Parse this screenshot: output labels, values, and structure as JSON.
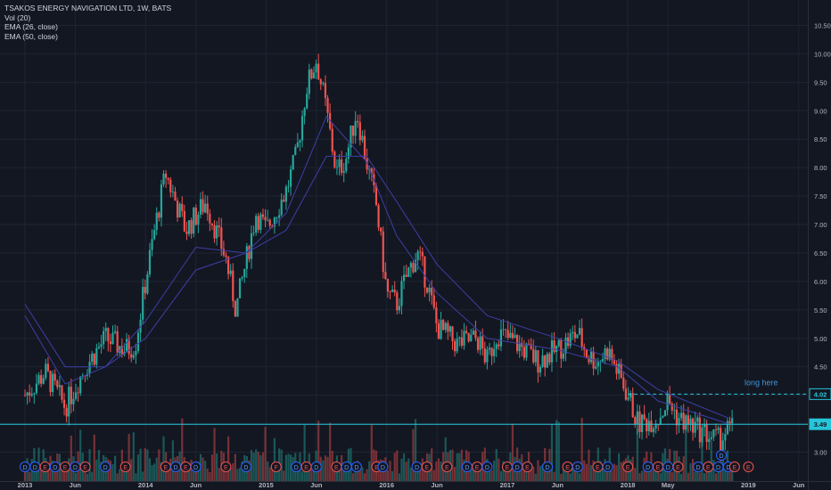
{
  "legend": {
    "title": "TSAKOS ENERGY NAVIGATION LTD, 1W, BATS",
    "vol": "Vol (20)",
    "ema26": "EMA (26, close)",
    "ema50": "EMA (50, close)"
  },
  "annotation": "long here",
  "colors": {
    "background": "#131722",
    "grid": "#1e2433",
    "up": "#26a69a",
    "down": "#ef5350",
    "ema": "#3e3fa5",
    "level": "#26c6da"
  },
  "chart_data": {
    "type": "candlestick",
    "x_ticks": [
      "2013",
      "Jun",
      "2014",
      "Jun",
      "2015",
      "Jun",
      "2016",
      "Jun",
      "2017",
      "Jun",
      "2018",
      "May",
      "2019",
      "Jun"
    ],
    "y_ticks": [
      "10.50",
      "10.00",
      "9.50",
      "9.00",
      "8.50",
      "8.00",
      "7.50",
      "7.00",
      "6.50",
      "6.00",
      "5.50",
      "5.00",
      "4.50",
      "4.00",
      "3.50",
      "3.00"
    ],
    "ylim": [
      2.7,
      10.7
    ],
    "price_labels": [
      "4.02",
      "3.49"
    ],
    "price_levels": [
      4.02,
      3.49
    ],
    "close_path": [
      [
        "2013-01",
        4.0
      ],
      [
        "2013-03",
        4.4
      ],
      [
        "2013-05",
        3.8
      ],
      [
        "2013-07",
        4.5
      ],
      [
        "2013-09",
        5.0
      ],
      [
        "2013-11",
        4.8
      ],
      [
        "2013-12",
        4.9
      ],
      [
        "2014-01",
        6.0
      ],
      [
        "2014-02",
        7.0
      ],
      [
        "2014-03",
        7.9
      ],
      [
        "2014-05",
        6.9
      ],
      [
        "2014-07",
        7.4
      ],
      [
        "2014-09",
        6.4
      ],
      [
        "2014-10",
        5.5
      ],
      [
        "2014-12",
        7.2
      ],
      [
        "2015-01",
        6.9
      ],
      [
        "2015-03",
        7.6
      ],
      [
        "2015-04",
        8.2
      ],
      [
        "2015-05",
        9.4
      ],
      [
        "2015-06",
        9.9
      ],
      [
        "2015-07",
        9.0
      ],
      [
        "2015-08",
        7.9
      ],
      [
        "2015-09",
        8.2
      ],
      [
        "2015-10",
        9.0
      ],
      [
        "2015-11",
        8.1
      ],
      [
        "2015-12",
        7.3
      ],
      [
        "2016-01",
        5.8
      ],
      [
        "2016-02",
        5.6
      ],
      [
        "2016-03",
        6.1
      ],
      [
        "2016-04",
        6.5
      ],
      [
        "2016-05",
        6.0
      ],
      [
        "2016-06",
        5.2
      ],
      [
        "2016-08",
        4.9
      ],
      [
        "2016-10",
        5.0
      ],
      [
        "2016-11",
        4.6
      ],
      [
        "2016-12",
        5.1
      ],
      [
        "2017-02",
        4.9
      ],
      [
        "2017-04",
        4.6
      ],
      [
        "2017-06",
        4.8
      ],
      [
        "2017-08",
        5.1
      ],
      [
        "2017-09",
        4.7
      ],
      [
        "2017-10",
        4.6
      ],
      [
        "2017-11",
        4.8
      ],
      [
        "2017-12",
        4.4
      ],
      [
        "2018-01",
        4.0
      ],
      [
        "2018-02",
        3.5
      ],
      [
        "2018-04",
        3.6
      ],
      [
        "2018-05",
        3.9
      ],
      [
        "2018-06",
        3.6
      ],
      [
        "2018-08",
        3.4
      ],
      [
        "2018-10",
        3.2
      ],
      [
        "2018-11",
        3.4
      ]
    ],
    "ema26": [
      [
        "2013-01",
        5.4
      ],
      [
        "2013-05",
        4.2
      ],
      [
        "2013-09",
        4.5
      ],
      [
        "2014-01",
        5.3
      ],
      [
        "2014-06",
        6.6
      ],
      [
        "2014-11",
        6.5
      ],
      [
        "2015-03",
        7.2
      ],
      [
        "2015-07",
        8.9
      ],
      [
        "2015-11",
        8.1
      ],
      [
        "2016-02",
        6.8
      ],
      [
        "2016-06",
        5.8
      ],
      [
        "2016-11",
        5.0
      ],
      [
        "2017-06",
        4.8
      ],
      [
        "2017-12",
        4.5
      ],
      [
        "2018-04",
        3.9
      ],
      [
        "2018-11",
        3.5
      ]
    ],
    "ema50": [
      [
        "2013-01",
        5.6
      ],
      [
        "2013-05",
        4.5
      ],
      [
        "2013-09",
        4.5
      ],
      [
        "2014-01",
        5.0
      ],
      [
        "2014-06",
        6.2
      ],
      [
        "2014-11",
        6.5
      ],
      [
        "2015-03",
        6.9
      ],
      [
        "2015-07",
        8.2
      ],
      [
        "2015-11",
        8.2
      ],
      [
        "2016-02",
        7.4
      ],
      [
        "2016-06",
        6.3
      ],
      [
        "2016-11",
        5.4
      ],
      [
        "2017-06",
        5.0
      ],
      [
        "2017-12",
        4.6
      ],
      [
        "2018-04",
        4.1
      ],
      [
        "2018-11",
        3.6
      ]
    ],
    "events": [
      {
        "date": "2013-01",
        "label": "D"
      },
      {
        "date": "2013-02",
        "label": "D"
      },
      {
        "date": "2013-03",
        "label": "E"
      },
      {
        "date": "2013-04",
        "label": "D"
      },
      {
        "date": "2013-05",
        "label": "E"
      },
      {
        "date": "2013-06",
        "label": "D"
      },
      {
        "date": "2013-07",
        "label": "E"
      },
      {
        "date": "2013-09",
        "label": "D"
      },
      {
        "date": "2013-11",
        "label": "E"
      },
      {
        "date": "2014-03",
        "label": "E"
      },
      {
        "date": "2014-04",
        "label": "D"
      },
      {
        "date": "2014-05",
        "label": "E"
      },
      {
        "date": "2014-06",
        "label": "D"
      },
      {
        "date": "2014-09",
        "label": "E"
      },
      {
        "date": "2014-11",
        "label": "D"
      },
      {
        "date": "2015-02",
        "label": "F"
      },
      {
        "date": "2015-04",
        "label": "D"
      },
      {
        "date": "2015-05",
        "label": "E"
      },
      {
        "date": "2015-06",
        "label": "D"
      },
      {
        "date": "2015-08",
        "label": "E"
      },
      {
        "date": "2015-09",
        "label": "D"
      },
      {
        "date": "2015-10",
        "label": "D"
      },
      {
        "date": "2015-12",
        "label": "E"
      },
      {
        "date": "2015-12",
        "label": "D"
      },
      {
        "date": "2016-04",
        "label": "D"
      },
      {
        "date": "2016-05",
        "label": "E"
      },
      {
        "date": "2016-07",
        "label": "E"
      },
      {
        "date": "2016-09",
        "label": "D"
      },
      {
        "date": "2016-10",
        "label": "E"
      },
      {
        "date": "2016-11",
        "label": "D"
      },
      {
        "date": "2017-01",
        "label": "E"
      },
      {
        "date": "2017-02",
        "label": "D"
      },
      {
        "date": "2017-03",
        "label": "E"
      },
      {
        "date": "2017-05",
        "label": "D"
      },
      {
        "date": "2017-07",
        "label": "E"
      },
      {
        "date": "2017-08",
        "label": "D"
      },
      {
        "date": "2017-10",
        "label": "E"
      },
      {
        "date": "2017-11",
        "label": "D"
      },
      {
        "date": "2018-01",
        "label": "E"
      },
      {
        "date": "2018-03",
        "label": "D"
      },
      {
        "date": "2018-04",
        "label": "E"
      },
      {
        "date": "2018-05",
        "label": "D"
      },
      {
        "date": "2018-06",
        "label": "E"
      },
      {
        "date": "2018-08",
        "label": "D"
      },
      {
        "date": "2018-09",
        "label": "E"
      },
      {
        "date": "2018-10",
        "label": "D"
      },
      {
        "date": "2018-11",
        "label": "D"
      },
      {
        "date": "2018-11",
        "label": "E"
      },
      {
        "date": "2019-01",
        "label": "E"
      }
    ]
  }
}
